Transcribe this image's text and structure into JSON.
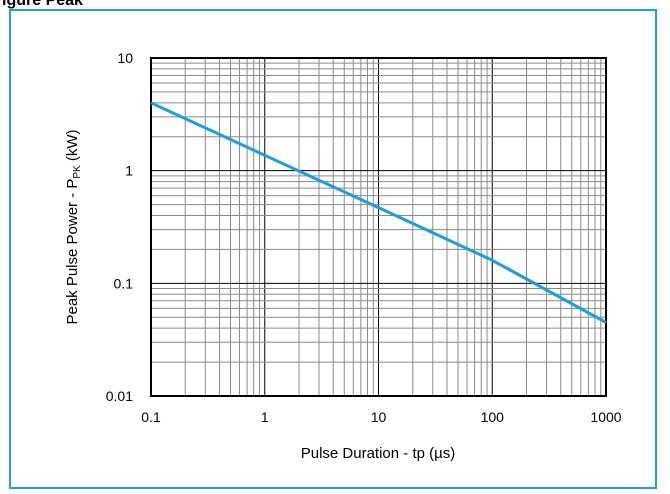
{
  "header": {
    "clipped_title": "igure    Peak"
  },
  "chart_data": {
    "type": "line",
    "title": "",
    "xlabel": "Pulse Duration - tp (µs)",
    "ylabel_main": "Peak Pulse Power - P",
    "ylabel_sub": "PK",
    "ylabel_tail": " (kW)",
    "x_scale": "log",
    "y_scale": "log",
    "xlim": [
      0.1,
      1000
    ],
    "ylim": [
      0.01,
      10
    ],
    "x_ticks": [
      "0.1",
      "1",
      "10",
      "100",
      "1000"
    ],
    "y_ticks": [
      "10",
      "1",
      "0.1",
      "0.01"
    ],
    "grid": true,
    "series": [
      {
        "color": "#1a9ee2",
        "x": [
          0.1,
          1,
          10,
          100,
          1000
        ],
        "y": [
          4.0,
          1.37,
          0.47,
          0.16,
          0.045
        ]
      }
    ]
  }
}
